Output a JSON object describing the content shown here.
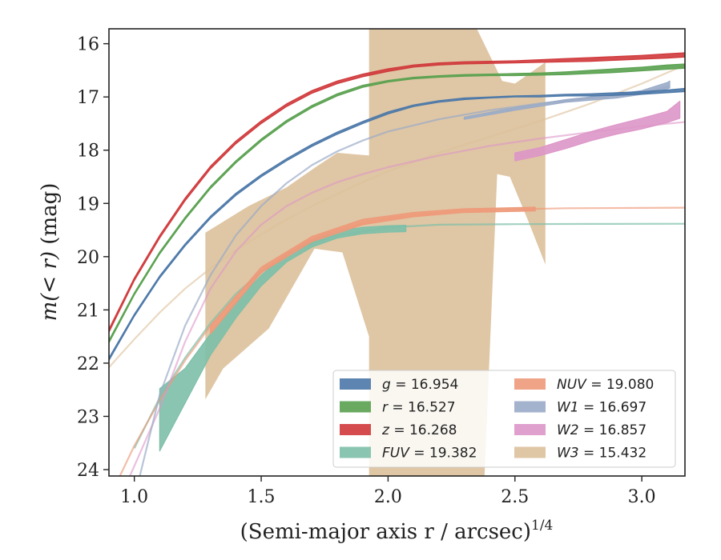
{
  "chart_data": {
    "type": "line",
    "xlabel": "(Semi-major axis r / arcsec)",
    "xlabel_sup": "1/4",
    "ylabel_prefix": "m(< r)",
    "ylabel_suffix": " (mag)",
    "xlim": [
      0.9,
      3.17
    ],
    "ylim": [
      24.12,
      15.72
    ],
    "y_inverted": true,
    "x_ticks": [
      1.0,
      1.5,
      2.0,
      2.5,
      3.0
    ],
    "x_tick_labels": [
      "1.0",
      "1.5",
      "2.0",
      "2.5",
      "3.0"
    ],
    "y_ticks": [
      16,
      17,
      18,
      19,
      20,
      21,
      22,
      23,
      24
    ],
    "y_tick_labels": [
      "16",
      "17",
      "18",
      "19",
      "20",
      "21",
      "22",
      "23",
      "24"
    ],
    "legend_position": "lower-right",
    "series": [
      {
        "name": "g",
        "legend_value": "= 16.954",
        "color": "#4c78a8",
        "style": "band",
        "x": [
          0.9,
          1.0,
          1.1,
          1.2,
          1.3,
          1.4,
          1.5,
          1.6,
          1.7,
          1.8,
          1.9,
          2.0,
          2.1,
          2.2,
          2.3,
          2.4,
          2.5,
          2.6,
          2.7,
          2.8,
          2.9,
          3.0,
          3.1,
          3.17
        ],
        "y_lo": [
          21.95,
          21.12,
          20.4,
          19.8,
          19.28,
          18.85,
          18.5,
          18.2,
          17.93,
          17.7,
          17.5,
          17.32,
          17.18,
          17.1,
          17.05,
          17.02,
          17.0,
          17.0,
          16.98,
          16.98,
          16.97,
          16.95,
          16.92,
          16.9
        ],
        "y_hi": [
          21.9,
          21.08,
          20.36,
          19.76,
          19.24,
          18.81,
          18.46,
          18.16,
          17.89,
          17.66,
          17.46,
          17.28,
          17.15,
          17.07,
          17.02,
          17.0,
          16.98,
          16.97,
          16.95,
          16.94,
          16.92,
          16.9,
          16.87,
          16.84
        ]
      },
      {
        "name": "r",
        "legend_value": "= 16.527",
        "color": "#59a14f",
        "style": "band",
        "x": [
          0.9,
          1.0,
          1.1,
          1.2,
          1.3,
          1.4,
          1.5,
          1.6,
          1.7,
          1.8,
          1.9,
          2.0,
          2.1,
          2.2,
          2.3,
          2.4,
          2.5,
          2.6,
          2.7,
          2.8,
          2.9,
          3.0,
          3.1,
          3.17
        ],
        "y_lo": [
          21.62,
          20.72,
          19.95,
          19.3,
          18.72,
          18.24,
          17.83,
          17.48,
          17.2,
          16.98,
          16.82,
          16.72,
          16.66,
          16.63,
          16.61,
          16.6,
          16.6,
          16.59,
          16.58,
          16.56,
          16.54,
          16.51,
          16.48,
          16.46
        ],
        "y_hi": [
          21.57,
          20.68,
          19.91,
          19.26,
          18.68,
          18.2,
          17.79,
          17.44,
          17.16,
          16.94,
          16.78,
          16.69,
          16.63,
          16.6,
          16.58,
          16.57,
          16.56,
          16.55,
          16.53,
          16.5,
          16.47,
          16.44,
          16.4,
          16.38
        ]
      },
      {
        "name": "z",
        "legend_value": "= 16.268",
        "color": "#d0393b",
        "style": "band",
        "x": [
          0.9,
          1.0,
          1.1,
          1.2,
          1.3,
          1.4,
          1.5,
          1.6,
          1.7,
          1.8,
          1.9,
          2.0,
          2.1,
          2.2,
          2.3,
          2.4,
          2.5,
          2.6,
          2.7,
          2.8,
          2.9,
          3.0,
          3.1,
          3.17
        ],
        "y_lo": [
          21.42,
          20.45,
          19.65,
          18.95,
          18.35,
          17.88,
          17.5,
          17.18,
          16.93,
          16.75,
          16.62,
          16.52,
          16.44,
          16.4,
          16.38,
          16.37,
          16.36,
          16.35,
          16.34,
          16.33,
          16.31,
          16.29,
          16.27,
          16.25
        ],
        "y_hi": [
          21.36,
          20.4,
          19.6,
          18.9,
          18.3,
          17.83,
          17.45,
          17.13,
          16.88,
          16.7,
          16.57,
          16.47,
          16.4,
          16.36,
          16.34,
          16.33,
          16.32,
          16.3,
          16.28,
          16.26,
          16.24,
          16.22,
          16.19,
          16.17
        ]
      },
      {
        "name": "FUV",
        "legend_value": "= 19.382",
        "color": "#7dbfa8",
        "style": "band",
        "x": [
          1.1,
          1.2,
          1.3,
          1.4,
          1.5,
          1.6,
          1.7,
          1.8,
          1.9,
          2.0,
          2.07
        ],
        "y_lo": [
          23.65,
          22.75,
          21.85,
          21.15,
          20.55,
          20.1,
          19.82,
          19.65,
          19.57,
          19.54,
          19.53
        ],
        "y_hi": [
          22.48,
          22.1,
          21.45,
          20.85,
          20.35,
          19.95,
          19.68,
          19.52,
          19.45,
          19.42,
          19.41
        ]
      },
      {
        "name": "FUV model",
        "color": "#7dbfa8",
        "style": "line",
        "alpha": 0.7,
        "x": [
          1.0,
          1.1,
          1.2,
          1.3,
          1.4,
          1.5,
          1.6,
          1.7,
          1.8,
          2.0,
          2.2,
          2.5,
          2.8,
          3.17
        ],
        "y": [
          23.6,
          22.65,
          21.9,
          21.25,
          20.7,
          20.28,
          19.97,
          19.75,
          19.6,
          19.45,
          19.4,
          19.39,
          19.385,
          19.382
        ]
      },
      {
        "name": "NUV",
        "legend_value": "= 19.080",
        "color": "#ee9a7a",
        "style": "band",
        "x": [
          1.3,
          1.5,
          1.7,
          1.9,
          2.1,
          2.3,
          2.5,
          2.58
        ],
        "y_lo": [
          21.45,
          20.3,
          19.72,
          19.4,
          19.25,
          19.17,
          19.15,
          19.14
        ],
        "y_hi": [
          21.3,
          20.2,
          19.62,
          19.3,
          19.17,
          19.1,
          19.08,
          19.07
        ]
      },
      {
        "name": "NUV model",
        "color": "#ee9a7a",
        "style": "line",
        "alpha": 0.65,
        "x": [
          0.94,
          1.0,
          1.1,
          1.2,
          1.3,
          1.4,
          1.5,
          1.6,
          1.7,
          1.8,
          1.9,
          2.0,
          2.2,
          2.4,
          2.7,
          3.0,
          3.17
        ],
        "y": [
          24.15,
          23.55,
          22.7,
          21.95,
          21.3,
          20.75,
          20.3,
          19.95,
          19.68,
          19.5,
          19.38,
          19.28,
          19.17,
          19.12,
          19.09,
          19.085,
          19.08
        ]
      },
      {
        "name": "W1",
        "legend_value": "= 16.697",
        "color": "#9aabc8",
        "style": "band",
        "x": [
          2.3,
          2.5,
          2.7,
          2.9,
          3.0,
          3.1,
          3.11
        ],
        "y_lo": [
          17.42,
          17.25,
          17.1,
          17.02,
          16.95,
          16.85,
          16.83
        ],
        "y_hi": [
          17.38,
          17.2,
          17.05,
          16.95,
          16.88,
          16.73,
          16.7
        ]
      },
      {
        "name": "W1 model",
        "color": "#9aabc8",
        "style": "line",
        "alpha": 0.7,
        "x": [
          1.02,
          1.1,
          1.2,
          1.3,
          1.4,
          1.5,
          1.6,
          1.7,
          1.8,
          1.9,
          2.0,
          2.2,
          2.4,
          2.6,
          2.8,
          3.0,
          3.11
        ],
        "y": [
          24.15,
          22.6,
          21.3,
          20.35,
          19.6,
          19.05,
          18.62,
          18.28,
          18.02,
          17.82,
          17.65,
          17.42,
          17.25,
          17.12,
          17.02,
          16.92,
          16.8
        ]
      },
      {
        "name": "W2",
        "legend_value": "= 16.857",
        "color": "#dd96c8",
        "style": "band",
        "x": [
          2.5,
          2.6,
          2.7,
          2.8,
          2.9,
          3.0,
          3.1,
          3.15
        ],
        "y_lo": [
          18.2,
          18.1,
          17.97,
          17.82,
          17.7,
          17.6,
          17.48,
          17.4
        ],
        "y_hi": [
          18.05,
          17.95,
          17.8,
          17.65,
          17.52,
          17.4,
          17.27,
          17.08
        ]
      },
      {
        "name": "W2 model",
        "color": "#dd96c8",
        "style": "line",
        "alpha": 0.6,
        "x": [
          0.98,
          1.1,
          1.2,
          1.3,
          1.4,
          1.5,
          1.6,
          1.7,
          1.8,
          1.9,
          2.0,
          2.2,
          2.4,
          2.6,
          2.8,
          3.0,
          3.17
        ],
        "y": [
          24.15,
          22.85,
          21.6,
          20.6,
          19.9,
          19.4,
          19.05,
          18.8,
          18.6,
          18.45,
          18.32,
          18.1,
          17.92,
          17.78,
          17.66,
          17.55,
          17.47
        ]
      },
      {
        "name": "W3",
        "legend_value": "= 15.432",
        "color": "#dcc09a",
        "style": "polygon",
        "x": [
          1.28,
          1.35,
          1.53,
          1.71,
          1.82,
          1.925,
          1.925,
          2.02,
          2.1,
          2.2,
          2.3,
          2.35,
          2.45,
          2.5,
          2.62,
          2.62,
          2.55,
          2.48,
          2.43,
          2.38,
          2.32,
          2.18,
          2.0,
          1.925,
          1.925,
          1.8,
          1.72,
          1.6,
          1.45,
          1.28
        ],
        "y": [
          22.68,
          22.1,
          21.35,
          19.85,
          19.92,
          21.5,
          15.72,
          15.72,
          15.72,
          15.72,
          15.72,
          15.72,
          16.7,
          16.75,
          16.35,
          20.15,
          19.3,
          18.5,
          18.45,
          24.12,
          24.12,
          24.12,
          24.12,
          24.12,
          18.1,
          18.05,
          18.3,
          18.7,
          19.05,
          19.55
        ],
        "alpha": 0.9
      },
      {
        "name": "W3 model",
        "color": "#dcc09a",
        "style": "line",
        "alpha": 0.6,
        "x": [
          0.9,
          1.0,
          1.1,
          1.2,
          1.3,
          1.4,
          1.5,
          1.6,
          1.7,
          1.8,
          1.9,
          2.0,
          2.2,
          2.4,
          2.6,
          2.8,
          3.0,
          3.17
        ],
        "y": [
          22.08,
          21.55,
          21.05,
          20.6,
          20.22,
          19.88,
          19.58,
          19.3,
          19.05,
          18.82,
          18.6,
          18.4,
          18.05,
          17.75,
          17.45,
          17.12,
          16.75,
          16.4
        ]
      }
    ]
  }
}
